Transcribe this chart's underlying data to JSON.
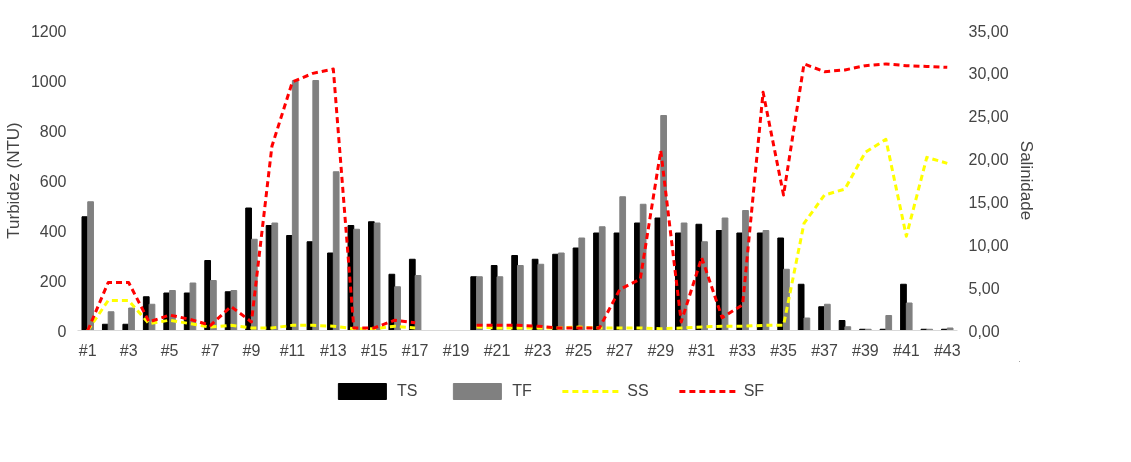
{
  "chart_data": {
    "type": "bar",
    "ylabel": "Turbidez (NTU)",
    "y2label": "Salinidade",
    "categories": [
      "#1",
      null,
      "#3",
      null,
      "#5",
      null,
      "#7",
      null,
      "#9",
      null,
      "#11",
      null,
      "#13",
      null,
      "#15",
      null,
      "#17",
      null,
      "#19",
      null,
      "#21",
      null,
      "#23",
      null,
      "#25",
      null,
      "#27",
      null,
      "#29",
      null,
      "#31",
      null,
      "#33",
      null,
      "#35",
      null,
      "#37",
      null,
      "#39",
      null,
      "#41",
      null,
      "#43"
    ],
    "series": [
      {
        "name": "TS",
        "type": "bar",
        "color": "#000000",
        "values": [
          455,
          25,
          25,
          135,
          150,
          150,
          280,
          155,
          490,
          420,
          380,
          355,
          310,
          420,
          435,
          225,
          285,
          null,
          null,
          215,
          260,
          300,
          285,
          305,
          330,
          390,
          390,
          430,
          450,
          390,
          425,
          400,
          390,
          390,
          370,
          185,
          95,
          40,
          5,
          5,
          185,
          5,
          5
        ]
      },
      {
        "name": "TF",
        "type": "bar",
        "color": "#808080",
        "values": [
          515,
          75,
          90,
          105,
          160,
          190,
          200,
          160,
          365,
          430,
          1000,
          1000,
          635,
          405,
          430,
          175,
          220,
          null,
          null,
          215,
          215,
          260,
          265,
          310,
          370,
          415,
          535,
          505,
          860,
          430,
          355,
          450,
          480,
          400,
          245,
          50,
          105,
          15,
          5,
          60,
          110,
          5,
          10
        ]
      },
      {
        "name": "SS",
        "type": "line",
        "axis": "y2",
        "color": "#ffff00",
        "values": [
          0,
          3.5,
          3.5,
          0.8,
          1.2,
          0.8,
          0.4,
          0.6,
          0.3,
          0.3,
          0.6,
          0.6,
          0.5,
          0.2,
          0.2,
          0.5,
          0.3,
          null,
          null,
          0.4,
          0.3,
          0.3,
          0.3,
          0.3,
          0.4,
          0.3,
          0.3,
          0.3,
          0.2,
          0.3,
          0.4,
          0.5,
          0.5,
          0.6,
          0.6,
          12.5,
          15.8,
          16.5,
          20.8,
          22.3,
          11,
          20.2,
          19.5
        ]
      },
      {
        "name": "SF",
        "type": "line",
        "axis": "y2",
        "color": "#ff0000",
        "values": [
          0,
          5.6,
          5.6,
          1.0,
          1.8,
          1.3,
          0.6,
          2.8,
          1.0,
          21.5,
          29,
          30,
          30.5,
          0.3,
          0.3,
          1.2,
          0.9,
          null,
          null,
          0.6,
          0.6,
          0.6,
          0.5,
          0.3,
          0.3,
          0.3,
          4.8,
          6.0,
          21,
          1.0,
          8.5,
          1.5,
          3.0,
          27.8,
          15.8,
          31.1,
          30.2,
          30.4,
          30.9,
          31.1,
          30.9,
          30.8,
          30.7
        ]
      }
    ],
    "ylim": [
      0,
      1200
    ],
    "yticks": [
      0,
      200,
      400,
      600,
      800,
      1000,
      1200
    ],
    "y2lim": [
      0,
      35
    ],
    "y2ticks": [
      {
        "value": 0,
        "label": "0,00"
      },
      {
        "value": 5,
        "label": "5,00"
      },
      {
        "value": 10,
        "label": "10,00"
      },
      {
        "value": 15,
        "label": "15,00"
      },
      {
        "value": 20,
        "label": "20,00"
      },
      {
        "value": 25,
        "label": "25,00"
      },
      {
        "value": 30,
        "label": "30,00"
      },
      {
        "value": 35,
        "label": "35,00"
      }
    ],
    "grid": false,
    "legend": "bottom",
    "line_style": "dashed"
  }
}
